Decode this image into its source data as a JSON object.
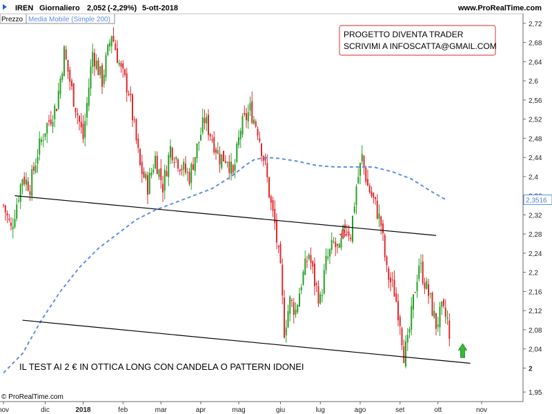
{
  "header": {
    "ticker": "IREN",
    "period": "Giornaliero",
    "last_price": "2,052",
    "change": "(-2,29%)",
    "date": "5-ott-2018",
    "site": "www.ProRealTime.com"
  },
  "legend": {
    "price_label": "Prezzo",
    "ma_label": "Media Mobile (Simple 200)"
  },
  "copyright": "© ProRealTime.com",
  "annotation_box": {
    "line1": "PROGETTO DIVENTA TRADER",
    "line2": "SCRIVIMI A INFOSCATTA@GMAIL.COM"
  },
  "bottom_note": "IL TEST AI 2 € IN OTTICA LONG CON CANDELA O PATTERN IDONEI",
  "colors": {
    "up": "#22a022",
    "down": "#e0262a",
    "ma": "#5b8ee6",
    "trendline": "#000000",
    "box_border": "#e05050",
    "arrow": "#33bb33",
    "highlight_label": "#4a7fd8"
  },
  "chart_data": {
    "type": "candlestick",
    "title": "IREN Giornaliero",
    "ylim": [
      1.93,
      2.74
    ],
    "y_ticks": [
      {
        "value": 1.95,
        "label": "1,95"
      },
      {
        "value": 2.0,
        "label": "2"
      },
      {
        "value": 2.04,
        "label": "2,04"
      },
      {
        "value": 2.08,
        "label": "2,08"
      },
      {
        "value": 2.12,
        "label": "2,12"
      },
      {
        "value": 2.16,
        "label": "2,16"
      },
      {
        "value": 2.2,
        "label": "2,2"
      },
      {
        "value": 2.24,
        "label": "2,24"
      },
      {
        "value": 2.28,
        "label": "2,28"
      },
      {
        "value": 2.32,
        "label": "2,32"
      },
      {
        "value": 2.36,
        "label": "2,36"
      },
      {
        "value": 2.4,
        "label": "2,4"
      },
      {
        "value": 2.44,
        "label": "2,44"
      },
      {
        "value": 2.48,
        "label": "2,48"
      },
      {
        "value": 2.52,
        "label": "2,52"
      },
      {
        "value": 2.56,
        "label": "2,56"
      },
      {
        "value": 2.6,
        "label": "2,6"
      },
      {
        "value": 2.64,
        "label": "2,64"
      },
      {
        "value": 2.68,
        "label": "2,68"
      },
      {
        "value": 2.72,
        "label": "2,72"
      }
    ],
    "ma_current": {
      "value": 2.3516,
      "label": "2,3516"
    },
    "x_labels": [
      {
        "label": "nov",
        "index": 0,
        "bold": false
      },
      {
        "label": "dic",
        "index": 22,
        "bold": false
      },
      {
        "label": "2018",
        "index": 42,
        "bold": true
      },
      {
        "label": "feb",
        "index": 63,
        "bold": false
      },
      {
        "label": "mar",
        "index": 83,
        "bold": false
      },
      {
        "label": "apr",
        "index": 104,
        "bold": false
      },
      {
        "label": "mag",
        "index": 124,
        "bold": false
      },
      {
        "label": "giu",
        "index": 146,
        "bold": false
      },
      {
        "label": "lug",
        "index": 167,
        "bold": false
      },
      {
        "label": "ago",
        "index": 188,
        "bold": false
      },
      {
        "label": "set",
        "index": 209,
        "bold": false
      },
      {
        "label": "ott",
        "index": 229,
        "bold": false
      },
      {
        "label": "nov",
        "index": 252,
        "bold": false
      }
    ],
    "candle_count": 236,
    "close_anchors": [
      [
        0,
        2.34
      ],
      [
        4,
        2.29
      ],
      [
        10,
        2.4
      ],
      [
        14,
        2.38
      ],
      [
        18,
        2.45
      ],
      [
        22,
        2.5
      ],
      [
        28,
        2.55
      ],
      [
        32,
        2.66
      ],
      [
        36,
        2.58
      ],
      [
        42,
        2.48
      ],
      [
        47,
        2.66
      ],
      [
        52,
        2.6
      ],
      [
        57,
        2.7
      ],
      [
        62,
        2.62
      ],
      [
        66,
        2.58
      ],
      [
        72,
        2.42
      ],
      [
        76,
        2.38
      ],
      [
        80,
        2.44
      ],
      [
        84,
        2.38
      ],
      [
        88,
        2.46
      ],
      [
        94,
        2.42
      ],
      [
        98,
        2.4
      ],
      [
        102,
        2.46
      ],
      [
        106,
        2.52
      ],
      [
        110,
        2.48
      ],
      [
        114,
        2.44
      ],
      [
        118,
        2.44
      ],
      [
        121,
        2.4
      ],
      [
        125,
        2.5
      ],
      [
        130,
        2.54
      ],
      [
        134,
        2.5
      ],
      [
        138,
        2.42
      ],
      [
        141,
        2.34
      ],
      [
        143,
        2.3
      ],
      [
        146,
        2.2
      ],
      [
        148,
        2.08
      ],
      [
        151,
        2.14
      ],
      [
        154,
        2.12
      ],
      [
        157,
        2.18
      ],
      [
        161,
        2.24
      ],
      [
        164,
        2.18
      ],
      [
        167,
        2.14
      ],
      [
        170,
        2.22
      ],
      [
        174,
        2.26
      ],
      [
        177,
        2.24
      ],
      [
        180,
        2.3
      ],
      [
        183,
        2.28
      ],
      [
        186,
        2.38
      ],
      [
        189,
        2.44
      ],
      [
        192,
        2.38
      ],
      [
        196,
        2.34
      ],
      [
        199,
        2.3
      ],
      [
        202,
        2.2
      ],
      [
        206,
        2.16
      ],
      [
        209,
        2.1
      ],
      [
        211,
        2.03
      ],
      [
        213,
        2.05
      ],
      [
        216,
        2.14
      ],
      [
        219,
        2.22
      ],
      [
        222,
        2.18
      ],
      [
        225,
        2.14
      ],
      [
        228,
        2.09
      ],
      [
        231,
        2.12
      ],
      [
        234,
        2.1
      ],
      [
        235,
        2.052
      ]
    ],
    "ma200_anchors": [
      [
        0,
        1.99
      ],
      [
        10,
        2.03
      ],
      [
        20,
        2.1
      ],
      [
        30,
        2.16
      ],
      [
        40,
        2.21
      ],
      [
        50,
        2.25
      ],
      [
        60,
        2.28
      ],
      [
        70,
        2.31
      ],
      [
        80,
        2.33
      ],
      [
        90,
        2.345
      ],
      [
        100,
        2.36
      ],
      [
        110,
        2.375
      ],
      [
        120,
        2.4
      ],
      [
        128,
        2.425
      ],
      [
        132,
        2.435
      ],
      [
        138,
        2.44
      ],
      [
        145,
        2.438
      ],
      [
        155,
        2.432
      ],
      [
        165,
        2.423
      ],
      [
        175,
        2.42
      ],
      [
        185,
        2.42
      ],
      [
        195,
        2.42
      ],
      [
        205,
        2.41
      ],
      [
        215,
        2.395
      ],
      [
        225,
        2.37
      ],
      [
        233,
        2.352
      ]
    ],
    "trendlines": [
      {
        "name": "upper-channel-line",
        "from": [
          6,
          2.36
        ],
        "to": [
          228,
          2.277
        ]
      },
      {
        "name": "lower-channel-line",
        "from": [
          10,
          2.1
        ],
        "to": [
          246,
          2.01
        ]
      }
    ],
    "markers": [
      {
        "name": "down-arrow-marker",
        "index": 179,
        "value": 2.28,
        "direction": "down"
      },
      {
        "name": "up-arrow-marker",
        "index": 242,
        "value": 2.022,
        "direction": "up"
      }
    ]
  }
}
